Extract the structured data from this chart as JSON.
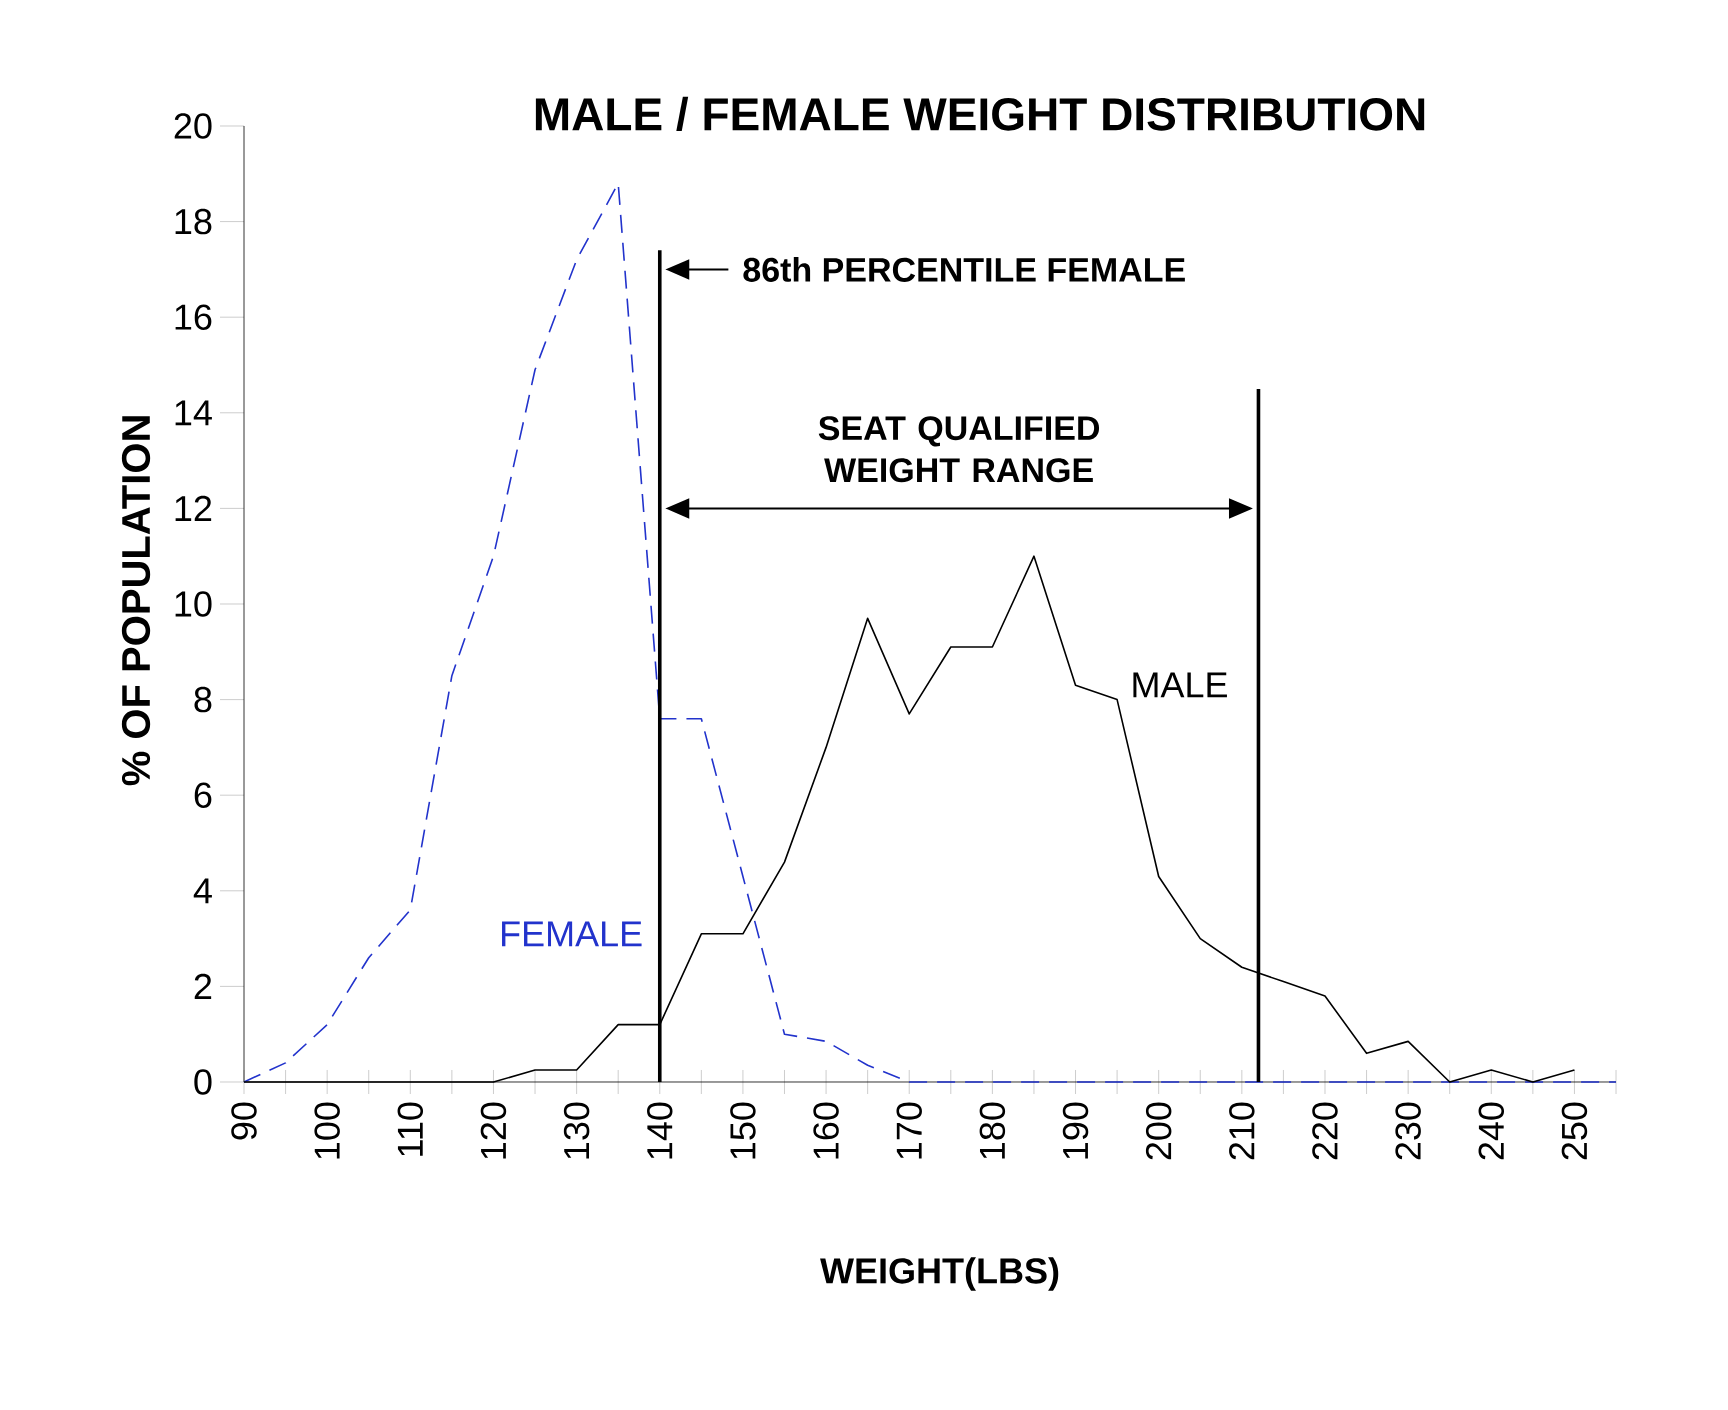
{
  "chart_data": {
    "type": "line",
    "title": "MALE / FEMALE WEIGHT DISTRIBUTION",
    "xlabel": "WEIGHT(LBS)",
    "ylabel": "% OF POPULATION",
    "x": [
      90,
      95,
      100,
      105,
      110,
      115,
      120,
      125,
      130,
      135,
      140,
      145,
      150,
      155,
      160,
      165,
      170,
      175,
      180,
      185,
      190,
      195,
      200,
      205,
      210,
      215,
      220,
      225,
      230,
      235,
      240,
      245,
      250,
      255
    ],
    "series": [
      {
        "name": "FEMALE",
        "color": "#2233cc",
        "line_style": "dashed",
        "values": [
          0,
          0.4,
          1.2,
          2.6,
          3.6,
          8.5,
          11,
          14.9,
          17.2,
          18.8,
          7.6,
          7.6,
          4.3,
          1.0,
          0.85,
          0.35,
          0,
          0,
          0,
          0,
          0,
          0,
          0,
          0,
          0,
          0,
          0,
          0,
          0,
          0,
          0,
          0,
          0,
          0
        ]
      },
      {
        "name": "MALE",
        "color": "#000000",
        "line_style": "solid",
        "values": [
          0,
          0,
          0,
          0,
          0,
          0,
          0,
          0.25,
          0.25,
          1.2,
          1.2,
          3.1,
          3.1,
          4.6,
          7.0,
          9.7,
          7.7,
          9.1,
          9.1,
          11.0,
          8.3,
          8.0,
          4.3,
          3.0,
          2.4,
          2.1,
          1.8,
          0.6,
          0.85,
          0,
          0.25,
          0,
          0.25,
          null
        ]
      }
    ],
    "xlim": [
      90,
      255
    ],
    "xticks": [
      90,
      {
        "value": 95,
        "label": null
      },
      100,
      {
        "value": 105,
        "label": null
      },
      110,
      {
        "value": 115,
        "label": null
      },
      120,
      {
        "value": 125,
        "label": null
      },
      130,
      {
        "value": 135,
        "label": null
      },
      140,
      {
        "value": 145,
        "label": null
      },
      150,
      {
        "value": 155,
        "label": null
      },
      160,
      {
        "value": 165,
        "label": null
      },
      170,
      {
        "value": 175,
        "label": null
      },
      180,
      {
        "value": 185,
        "label": null
      },
      190,
      {
        "value": 195,
        "label": null
      },
      200,
      {
        "value": 205,
        "label": null
      },
      210,
      {
        "value": 215,
        "label": null
      },
      220,
      {
        "value": 225,
        "label": null
      },
      230,
      {
        "value": 235,
        "label": null
      },
      240,
      {
        "value": 245,
        "label": null
      },
      250,
      {
        "value": 255,
        "label": null
      }
    ],
    "ylim": [
      0,
      20
    ],
    "yticks": [
      0,
      2,
      4,
      6,
      8,
      10,
      12,
      14,
      16,
      18,
      20
    ],
    "ref_lines": [
      {
        "axis": "x",
        "value": 140,
        "label": "86th PERCENTILE FEMALE"
      },
      {
        "axis": "x",
        "value": 212
      }
    ],
    "annotations": [
      "SEAT QUALIFIED WEIGHT RANGE"
    ]
  }
}
